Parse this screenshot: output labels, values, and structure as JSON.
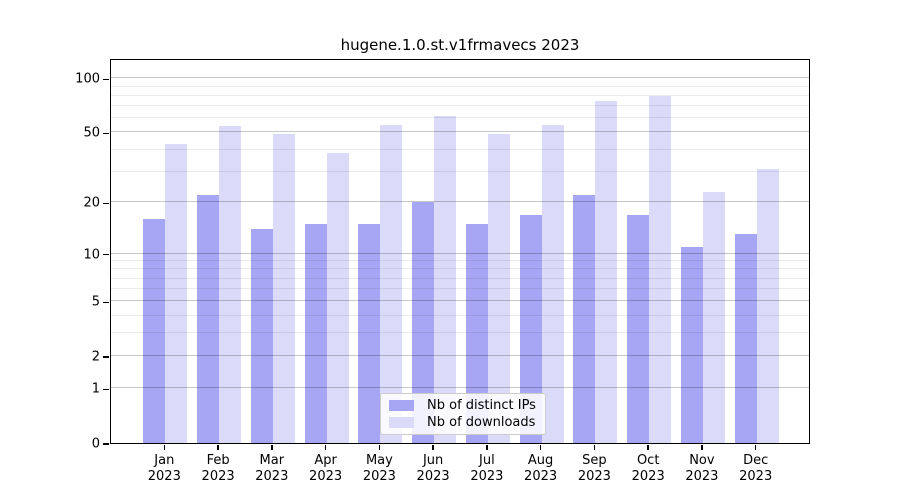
{
  "title": "hugene.1.0.st.v1frmavecs 2023",
  "chart_data": {
    "type": "bar",
    "title": "hugene.1.0.st.v1frmavecs 2023",
    "categories": [
      "Jan",
      "Feb",
      "Mar",
      "Apr",
      "May",
      "Jun",
      "Jul",
      "Aug",
      "Sep",
      "Oct",
      "Nov",
      "Dec"
    ],
    "category_year": "2023",
    "series": [
      {
        "name": "Nb of distinct IPs",
        "color": "#a6a6f4",
        "values": [
          16,
          22,
          14,
          15,
          15,
          20,
          15,
          17,
          22,
          17,
          11,
          13
        ]
      },
      {
        "name": "Nb of downloads",
        "color": "#dbdbf9",
        "values": [
          43,
          54,
          49,
          38,
          55,
          62,
          49,
          55,
          75,
          80,
          23,
          31
        ]
      }
    ],
    "xlabel": "",
    "ylabel": "",
    "y_scale": "log10(1+y)",
    "y_ticks": [
      0,
      1,
      2,
      5,
      10,
      20,
      50,
      100
    ],
    "y_minor_ticks": [
      3,
      4,
      6,
      7,
      8,
      9,
      30,
      40,
      60,
      70,
      80,
      90
    ],
    "ylim": [
      0,
      130
    ],
    "grid": "horizontal",
    "legend_position": "inside-bottom-center",
    "colors": {
      "distinct_ips_bar": "#a6a6f4",
      "downloads_bar": "#dbdbf9",
      "major_gridline": "#c7c7c7",
      "minor_gridline": "#ebebeb",
      "axis": "#000000",
      "background": "#ffffff"
    }
  },
  "legend": {
    "items": [
      {
        "label": "Nb of distinct IPs"
      },
      {
        "label": "Nb of downloads"
      }
    ]
  }
}
